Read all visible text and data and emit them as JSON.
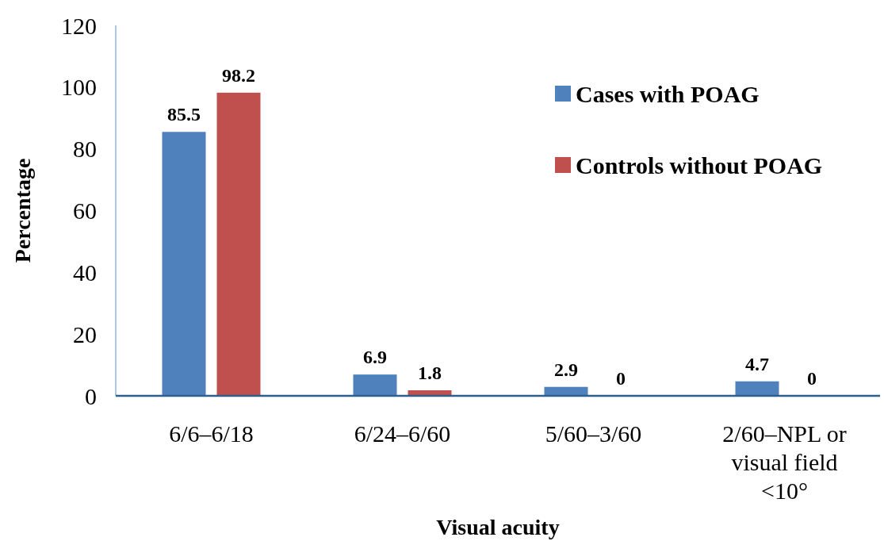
{
  "chart_data": {
    "type": "bar",
    "xlabel": "Visual acuity",
    "ylabel": "Percentage",
    "categories": [
      "6/6–6/18",
      "6/24–6/60",
      "5/60–3/60",
      "2/60–NPL or visual field <10°"
    ],
    "series": [
      {
        "name": "Cases with POAG",
        "color": "#4f81bd",
        "values": [
          85.5,
          6.9,
          2.9,
          4.7
        ]
      },
      {
        "name": "Controls without POAG",
        "color": "#c0504d",
        "values": [
          98.2,
          1.8,
          0,
          0
        ]
      }
    ],
    "ylim": [
      0,
      120
    ],
    "yticks": [
      0,
      20,
      40,
      60,
      80,
      100,
      120
    ],
    "data_labels": true,
    "legend": "top right",
    "grid": false
  }
}
